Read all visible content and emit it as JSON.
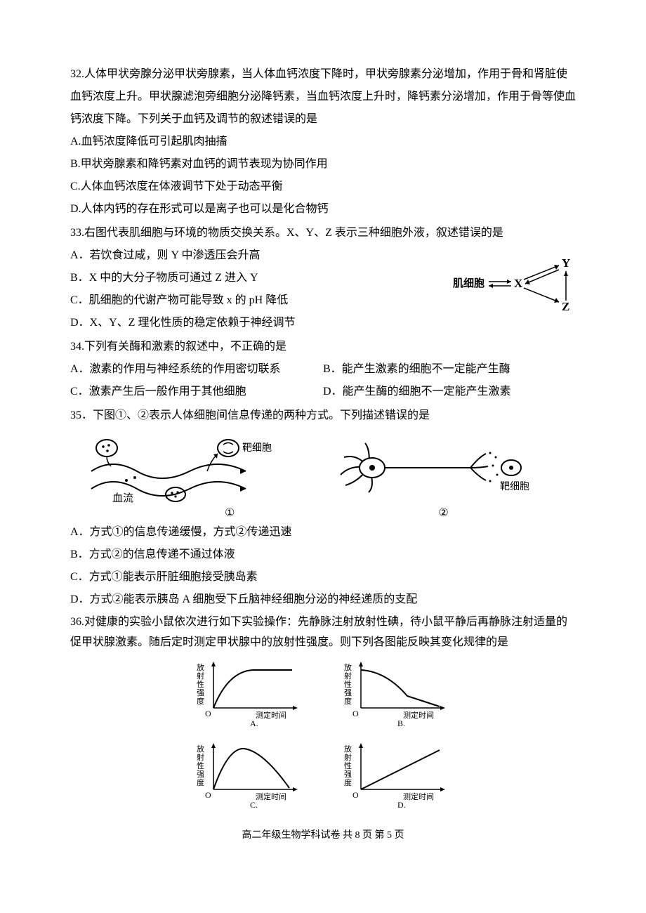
{
  "q32": {
    "stem": "32.人体甲状旁腺分泌甲状旁腺素，当人体血钙浓度下降时，甲状旁腺素分泌增加，作用于骨和肾脏使血钙浓度上升。甲状腺滤泡旁细胞分泌降钙素，当血钙浓度上升时，降钙素分泌增加，作用于骨等使血钙浓度下降。下列关于血钙及调节的叙述错误的是",
    "A": "A.血钙浓度降低可引起肌肉抽搐",
    "B": "B.甲状旁腺素和降钙素对血钙的调节表现为协同作用",
    "C": "C.人体血钙浓度在体液调节下处于动态平衡",
    "D": "D.人体内钙的存在形式可以是离子也可以是化合物钙"
  },
  "q33": {
    "stem": "33.右图代表肌细胞与环境的物质交换关系。X、Y、Z 表示三种细胞外液，叙述错误的是",
    "A": "A．若饮食过咸，则 Y 中渗透压会升高",
    "B": "B．X 中的大分子物质可通过 Z 进入 Y",
    "C": "C．肌细胞的代谢产物可能导致 x 的 pH 降低",
    "D": "D．X、Y、Z 理化性质的稳定依赖于神经调节",
    "fig": {
      "muscle": "肌细胞",
      "X": "X",
      "Y": "Y",
      "Z": "Z"
    }
  },
  "q34": {
    "stem": "34.下列有关酶和激素的叙述中，不正确的是",
    "A": "A．激素的作用与神经系统的作用密切联系",
    "B": "B．能产生激素的细胞不一定能产生酶",
    "C": "C．激素产生后一般作用于其他细胞",
    "D": "D．能产生酶的细胞不一定能产生激素"
  },
  "q35": {
    "stem": "35．下图①、②表示人体细胞间信息传递的两种方式。下列描述错误的是",
    "fig1": {
      "target": "靶细胞",
      "blood": "血流"
    },
    "fig2": {
      "target": "靶细胞"
    },
    "cap1": "①",
    "cap2": "②",
    "A": "A．方式①的信息传递缓慢，方式②传递迅速",
    "B": "B．方式②的信息传递不通过体液",
    "C": "C．方式①能表示肝脏细胞接受胰岛素",
    "D": "D．方式②能表示胰岛 A 细胞受下丘脑神经细胞分泌的神经递质的支配"
  },
  "q36": {
    "stem": "36.对健康的实验小鼠依次进行如下实验操作：先静脉注射放射性碘，待小鼠平静后再静脉注射适量的促甲状腺激素。随后定时测定甲状腺中的放射性强度。则下列各图能反映其变化规律的是",
    "chart": {
      "ylabel": "放射性强度",
      "xlabel": "测定时间",
      "origin": "O",
      "labels": {
        "A": "A.",
        "B": "B.",
        "C": "C.",
        "D": "D."
      },
      "axis_color": "#000",
      "curve_color": "#000",
      "label_fontsize": 12,
      "w": 170,
      "h": 100
    }
  },
  "footer": "高二年级生物学科试卷 共 8 页  第   5  页"
}
